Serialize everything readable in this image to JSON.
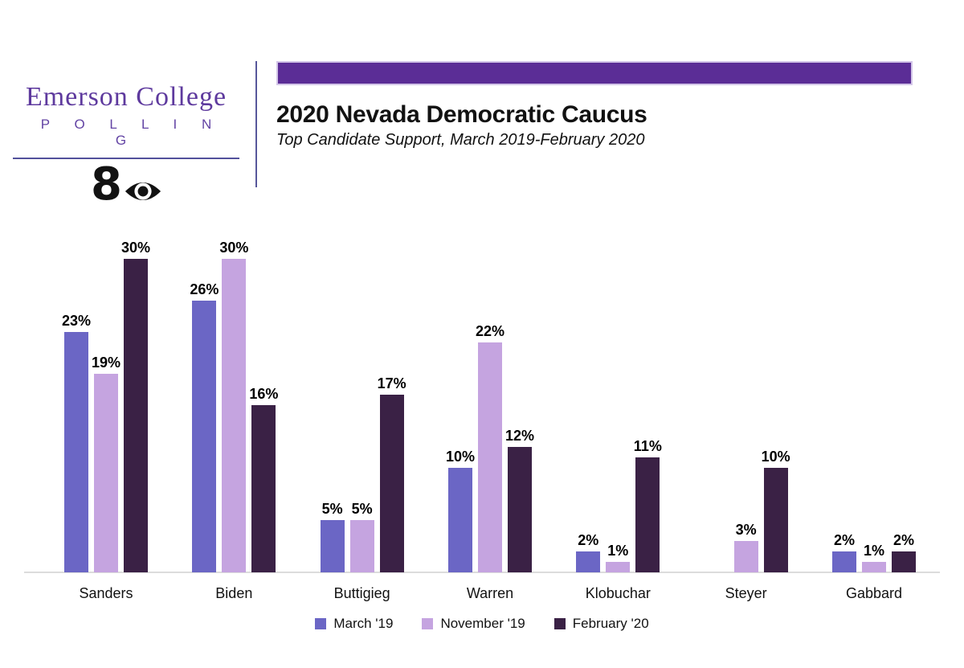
{
  "branding": {
    "logo_line1": "Emerson College",
    "logo_line2": "P O L L I N G",
    "cbs_number": "8"
  },
  "header": {
    "title": "2020 Nevada Democratic Caucus",
    "subtitle": "Top Candidate Support, March 2019-February 2020"
  },
  "colors": {
    "accent_purple": "#5b2d96",
    "logo_purple": "#5e3a9e",
    "divider_blue": "#56569a",
    "axis_line_gray": "#dcdcdc"
  },
  "chart_data": {
    "type": "bar",
    "title": "2020 Nevada Democratic Caucus",
    "subtitle": "Top Candidate Support, March 2019-February 2020",
    "categories": [
      "Sanders",
      "Biden",
      "Buttigieg",
      "Warren",
      "Klobuchar",
      "Steyer",
      "Gabbard"
    ],
    "series": [
      {
        "name": "March '19",
        "color": "#6b66c5",
        "values": [
          23,
          26,
          5,
          10,
          2,
          null,
          2
        ]
      },
      {
        "name": "November '19",
        "color": "#c5a4e0",
        "values": [
          19,
          30,
          5,
          22,
          1,
          3,
          1
        ]
      },
      {
        "name": "February '20",
        "color": "#3a2145",
        "values": [
          30,
          16,
          17,
          12,
          11,
          10,
          2
        ]
      }
    ],
    "value_suffix": "%",
    "ylim": [
      0,
      32
    ],
    "grid": false,
    "data_labels": true,
    "legend_position": "bottom"
  }
}
